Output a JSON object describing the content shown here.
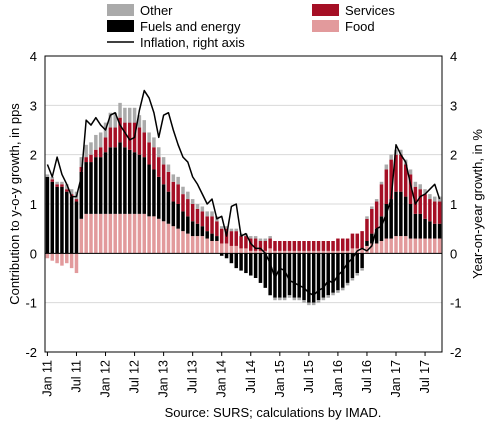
{
  "chart_data": {
    "type": "bar",
    "stacked": true,
    "source": "Source: SURS; calculations by IMAD.",
    "ylabel_left": "Contribution to y-o-y growth, in pps",
    "ylabel_right": "Year-on-year growth, in %",
    "ylim_left": [
      -2,
      4
    ],
    "ylim_right": [
      -2,
      4
    ],
    "yticks": [
      "-2",
      "-1",
      "0",
      "1",
      "2",
      "3",
      "4"
    ],
    "xticks": [
      {
        "label": "Jan 11",
        "index": 0
      },
      {
        "label": "Jul 11",
        "index": 6
      },
      {
        "label": "Jan 12",
        "index": 12
      },
      {
        "label": "Jul 12",
        "index": 18
      },
      {
        "label": "Jan 13",
        "index": 24
      },
      {
        "label": "Jul 13",
        "index": 30
      },
      {
        "label": "Jan 14",
        "index": 36
      },
      {
        "label": "Jul 14",
        "index": 42
      },
      {
        "label": "Jan 15",
        "index": 48
      },
      {
        "label": "Jul 15",
        "index": 54
      },
      {
        "label": "Jan 16",
        "index": 60
      },
      {
        "label": "Jul 16",
        "index": 66
      },
      {
        "label": "Jan 17",
        "index": 72
      },
      {
        "label": "Jul 17",
        "index": 78
      }
    ],
    "legend": [
      {
        "label": "Other",
        "series": "other"
      },
      {
        "label": "Services",
        "series": "services"
      },
      {
        "label": "Fuels and energy",
        "series": "fuels"
      },
      {
        "label": "Food",
        "series": "food"
      },
      {
        "label": "Inflation, right axis",
        "series": "inflation"
      }
    ],
    "colors": {
      "food": "#e29a9c",
      "fuels": "#000000",
      "services": "#a50f25",
      "other": "#aaaaaa",
      "inflation": "#000000",
      "grid": "#d9d9d9"
    },
    "periods": 82,
    "series": [
      {
        "name": "Food",
        "key": "food",
        "values": [
          -0.1,
          -0.15,
          -0.2,
          -0.25,
          -0.2,
          -0.3,
          -0.4,
          0.7,
          0.8,
          0.8,
          0.8,
          0.8,
          0.8,
          0.8,
          0.8,
          0.8,
          0.8,
          0.8,
          0.8,
          0.8,
          0.8,
          0.75,
          0.75,
          0.7,
          0.65,
          0.6,
          0.55,
          0.5,
          0.45,
          0.4,
          0.35,
          0.35,
          0.35,
          0.3,
          0.25,
          0.25,
          0.2,
          0.2,
          0.15,
          0.15,
          0.1,
          0.1,
          0.05,
          0.05,
          0.05,
          0.05,
          0.1,
          0.05,
          0.05,
          0.05,
          0.05,
          0.05,
          0.05,
          0.05,
          0.05,
          0.05,
          0.05,
          0.05,
          0.05,
          0.05,
          0.05,
          0.05,
          0.05,
          0.1,
          0.1,
          0.1,
          0.15,
          0.2,
          0.2,
          0.25,
          0.3,
          0.3,
          0.35,
          0.35,
          0.35,
          0.3,
          0.3,
          0.3,
          0.3,
          0.3,
          0.3,
          0.3
        ]
      },
      {
        "name": "Fuels and energy",
        "key": "fuels",
        "values": [
          1.55,
          1.45,
          1.35,
          1.35,
          1.25,
          1.15,
          1.05,
          0.95,
          1.05,
          1.05,
          1.15,
          1.15,
          1.25,
          1.35,
          1.35,
          1.45,
          1.35,
          1.3,
          1.25,
          1.2,
          1.15,
          1.05,
          0.95,
          0.85,
          0.75,
          0.65,
          0.5,
          0.5,
          0.4,
          0.35,
          0.3,
          0.25,
          0.2,
          0.15,
          0.15,
          0.1,
          -0.05,
          -0.1,
          -0.2,
          -0.3,
          -0.35,
          -0.4,
          -0.45,
          -0.5,
          -0.6,
          -0.7,
          -0.85,
          -0.9,
          -0.9,
          -0.9,
          -0.85,
          -0.9,
          -0.9,
          -0.95,
          -1.0,
          -1.0,
          -0.95,
          -0.9,
          -0.85,
          -0.8,
          -0.75,
          -0.7,
          -0.6,
          -0.5,
          -0.4,
          -0.3,
          0.1,
          0.2,
          0.3,
          0.5,
          0.7,
          0.8,
          0.9,
          0.9,
          0.8,
          0.7,
          0.5,
          0.5,
          0.4,
          0.35,
          0.3,
          0.3
        ]
      },
      {
        "name": "Services",
        "key": "services",
        "values": [
          0.0,
          0.05,
          0.05,
          0.05,
          0.05,
          0.05,
          0.05,
          0.1,
          0.1,
          0.15,
          0.15,
          0.2,
          0.3,
          0.4,
          0.4,
          0.5,
          0.5,
          0.55,
          0.6,
          0.55,
          0.5,
          0.45,
          0.45,
          0.4,
          0.4,
          0.4,
          0.4,
          0.4,
          0.35,
          0.35,
          0.35,
          0.3,
          0.3,
          0.3,
          0.35,
          0.3,
          0.3,
          0.3,
          0.3,
          0.3,
          0.25,
          0.25,
          0.25,
          0.25,
          0.2,
          0.2,
          0.2,
          0.2,
          0.2,
          0.2,
          0.2,
          0.2,
          0.2,
          0.2,
          0.2,
          0.2,
          0.2,
          0.2,
          0.2,
          0.2,
          0.25,
          0.25,
          0.25,
          0.3,
          0.3,
          0.35,
          0.45,
          0.5,
          0.55,
          0.65,
          0.7,
          0.8,
          0.75,
          0.75,
          0.65,
          0.6,
          0.55,
          0.5,
          0.5,
          0.45,
          0.45,
          0.45
        ]
      },
      {
        "name": "Other",
        "key": "other",
        "values": [
          0.05,
          0.05,
          0.05,
          0.05,
          0.1,
          0.1,
          0.15,
          0.2,
          0.25,
          0.25,
          0.3,
          0.3,
          0.3,
          0.3,
          0.3,
          0.3,
          0.3,
          0.3,
          0.3,
          0.25,
          0.25,
          0.2,
          0.2,
          0.2,
          0.15,
          0.15,
          0.15,
          0.15,
          0.15,
          0.15,
          0.1,
          0.1,
          0.1,
          0.1,
          0.1,
          0.1,
          0.05,
          0.05,
          0.05,
          0.05,
          0.05,
          0.05,
          0.05,
          0.05,
          0.05,
          0.05,
          0.05,
          -0.05,
          -0.05,
          -0.05,
          -0.05,
          -0.05,
          -0.05,
          -0.05,
          -0.05,
          -0.05,
          -0.05,
          -0.05,
          -0.05,
          -0.05,
          -0.05,
          -0.05,
          -0.05,
          -0.05,
          -0.05,
          -0.05,
          0.05,
          0.05,
          0.05,
          0.05,
          0.1,
          0.1,
          0.1,
          0.1,
          0.1,
          0.1,
          0.1,
          0.1,
          0.1,
          0.1,
          0.1,
          0.1
        ]
      },
      {
        "name": "Inflation, right axis",
        "key": "inflation",
        "type": "line",
        "values": [
          1.8,
          1.55,
          1.95,
          1.6,
          1.4,
          1.15,
          1.15,
          1.55,
          2.7,
          2.6,
          2.75,
          2.6,
          2.5,
          2.8,
          2.85,
          2.6,
          2.45,
          2.3,
          2.35,
          2.9,
          3.3,
          3.15,
          2.85,
          2.35,
          2.8,
          2.85,
          2.5,
          2.2,
          1.95,
          1.85,
          1.55,
          1.4,
          1.2,
          1.0,
          1.1,
          0.7,
          0.75,
          0.35,
          0.95,
          1.0,
          0.35,
          0.4,
          0.2,
          0.1,
          0.1,
          0.0,
          -0.2,
          -0.5,
          -0.3,
          -0.35,
          -0.55,
          -0.6,
          -0.65,
          -0.7,
          -0.8,
          -0.85,
          -0.75,
          -0.7,
          -0.55,
          -0.6,
          -0.45,
          -0.35,
          -0.2,
          -0.1,
          0.05,
          0.1,
          0.05,
          0.15,
          0.5,
          0.55,
          0.8,
          1.1,
          2.2,
          2.0,
          1.85,
          1.4,
          1.0,
          1.15,
          1.2,
          1.3,
          1.4,
          1.1
        ]
      }
    ]
  }
}
